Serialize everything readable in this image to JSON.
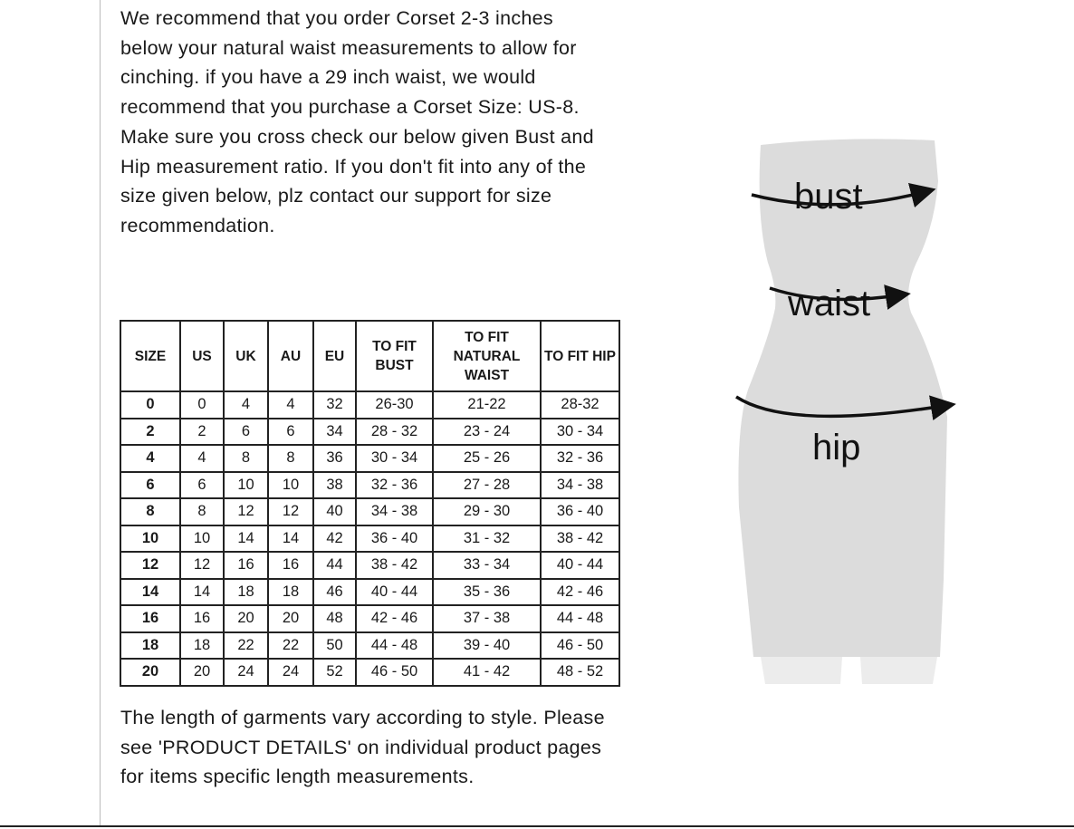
{
  "intro_text": "We recommend that you order Corset 2-3 inches below your natural waist measurements to allow for cinching. if you have a 29 inch waist, we would recommend that you purchase a Corset Size: US-8. Make sure you cross check our below given Bust and Hip measurement ratio. If you don't fit into any of the size given below, plz contact our support for size recommendation.",
  "size_table": {
    "headers": [
      "SIZE",
      "US",
      "UK",
      "AU",
      "EU",
      "TO FIT BUST",
      "TO FIT NATURAL WAIST",
      "TO FIT HIP"
    ],
    "rows": [
      [
        "0",
        "0",
        "4",
        "4",
        "32",
        "26-30",
        "21-22",
        "28-32"
      ],
      [
        "2",
        "2",
        "6",
        "6",
        "34",
        "28 - 32",
        "23 - 24",
        "30 - 34"
      ],
      [
        "4",
        "4",
        "8",
        "8",
        "36",
        "30 - 34",
        "25 - 26",
        "32 - 36"
      ],
      [
        "6",
        "6",
        "10",
        "10",
        "38",
        "32 - 36",
        "27 - 28",
        "34 - 38"
      ],
      [
        "8",
        "8",
        "12",
        "12",
        "40",
        "34 - 38",
        "29 - 30",
        "36 - 40"
      ],
      [
        "10",
        "10",
        "14",
        "14",
        "42",
        "36 - 40",
        "31 - 32",
        "38 - 42"
      ],
      [
        "12",
        "12",
        "16",
        "16",
        "44",
        "38 - 42",
        "33 - 34",
        "40 - 44"
      ],
      [
        "14",
        "14",
        "18",
        "18",
        "46",
        "40 - 44",
        "35 - 36",
        "42 - 46"
      ],
      [
        "16",
        "16",
        "20",
        "20",
        "48",
        "42 - 46",
        "37 - 38",
        "44 - 48"
      ],
      [
        "18",
        "18",
        "22",
        "22",
        "50",
        "44 - 48",
        "39 - 40",
        "46 - 50"
      ],
      [
        "20",
        "20",
        "24",
        "24",
        "52",
        "46 - 50",
        "41 - 42",
        "48 - 52"
      ]
    ]
  },
  "outro_text": "The length of garments vary according to style. Please see 'PRODUCT DETAILS'  on individual product pages for items specific length measurements.",
  "figure": {
    "bust_label": "bust",
    "waist_label": "waist",
    "hip_label": "hip",
    "body_color": "#dcdcdc"
  }
}
